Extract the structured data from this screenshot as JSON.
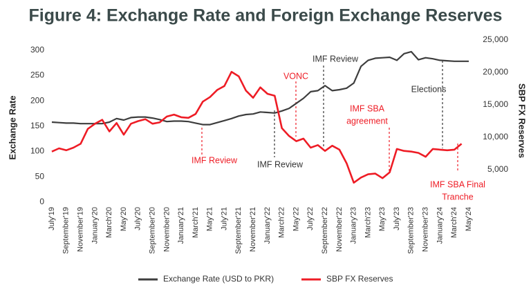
{
  "chart_data": {
    "type": "line",
    "title": "Figure 4: Exchange Rate and Foreign Exchange Reserves",
    "ylabel": "Exchange Rate",
    "y2label": "SBP FX Reserves",
    "categories": [
      "July'19",
      null,
      "September'19",
      null,
      "November'19",
      null,
      "January'20",
      null,
      "March'20",
      null,
      "May'20",
      null,
      "July'20",
      null,
      "September'20",
      null,
      "November'20",
      null,
      "January'21",
      null,
      "March'21",
      null,
      "May'21",
      null,
      "July'21",
      null,
      "September'21",
      null,
      "November'21",
      null,
      "January'22",
      null,
      "March'22",
      null,
      "May'22",
      null,
      "July'22",
      null,
      "September'22",
      null,
      "November'22",
      null,
      "January'23",
      null,
      "March'23",
      null,
      "May'23",
      null,
      "July'23",
      null,
      "September'23",
      null,
      "November'23",
      null,
      "January'24",
      null,
      "March'24",
      null,
      "May'24"
    ],
    "series": [
      {
        "name": "Exchange Rate (USD to PKR)",
        "color": "#3d3d3d",
        "axis": "y",
        "values": [
          158,
          157,
          156,
          156,
          155,
          155,
          155,
          155,
          158,
          165,
          162,
          167,
          168,
          168,
          166,
          163,
          159,
          160,
          160,
          159,
          156,
          153,
          153,
          157,
          161,
          165,
          170,
          173,
          174,
          178,
          177,
          176,
          180,
          185,
          195,
          205,
          218,
          220,
          230,
          220,
          222,
          225,
          235,
          268,
          280,
          284,
          285,
          286,
          280,
          293,
          297,
          281,
          285,
          283,
          280,
          279,
          278,
          278,
          278
        ]
      },
      {
        "name": "SBP FX Reserves",
        "color": "#ee1c25",
        "axis": "y2",
        "values": [
          7800,
          8300,
          8000,
          8400,
          9000,
          11300,
          12100,
          12700,
          10900,
          12200,
          10400,
          12100,
          12500,
          12800,
          12100,
          12300,
          13200,
          13500,
          13100,
          13000,
          13600,
          15500,
          16200,
          17300,
          17900,
          20100,
          19400,
          17200,
          16100,
          17700,
          16700,
          16400,
          11400,
          10200,
          9400,
          9800,
          8400,
          8800,
          7900,
          8700,
          8100,
          6000,
          3000,
          3800,
          4300,
          4400,
          3700,
          4600,
          8200,
          7900,
          7800,
          7600,
          7000,
          8200,
          8100,
          8000,
          8100,
          9000,
          null
        ]
      }
    ],
    "ylim": [
      0,
      320
    ],
    "yticks": [
      0,
      50,
      100,
      150,
      200,
      250,
      300
    ],
    "y2lim": [
      0,
      25000
    ],
    "y2ticks": [
      {
        "value": 5000,
        "label": "5,000"
      },
      {
        "value": 10000,
        "label": "10,000"
      },
      {
        "value": 15000,
        "label": "15,000"
      },
      {
        "value": 20000,
        "label": "20,000"
      },
      {
        "value": 25000,
        "label": "25,000"
      }
    ],
    "annotations": [
      {
        "text": [
          "IMF Review"
        ],
        "color": "#ee1c25"
      },
      {
        "text": [
          "IMF Review"
        ],
        "color": "#333333"
      },
      {
        "text": [
          "VONC"
        ],
        "color": "#ee1c25"
      },
      {
        "text": [
          "IMF Review"
        ],
        "color": "#333333"
      },
      {
        "text": [
          "IMF SBA",
          "agreement"
        ],
        "color": "#ee1c25"
      },
      {
        "text": [
          "Elections"
        ],
        "color": "#333333"
      },
      {
        "text": [
          "IMF SBA Final",
          "Tranche"
        ],
        "color": "#ee1c25"
      }
    ]
  }
}
